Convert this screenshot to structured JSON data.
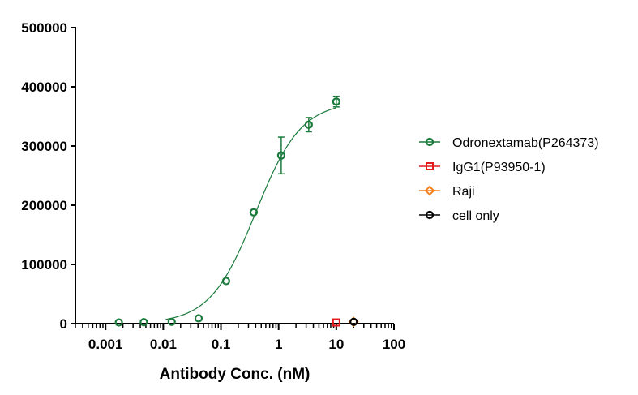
{
  "chart_data": {
    "type": "scatter",
    "title": "",
    "xlabel": "Antibody Conc. (nM)",
    "ylabel": "",
    "xscale": "log",
    "xlim": [
      0.0003,
      100
    ],
    "ylim": [
      0,
      500000
    ],
    "x_ticks": [
      0.001,
      0.01,
      0.1,
      1,
      10,
      100
    ],
    "x_tick_labels": [
      "0.001",
      "0.01",
      "0.1",
      "1",
      "10",
      "100"
    ],
    "y_ticks": [
      0,
      100000,
      200000,
      300000,
      400000,
      500000
    ],
    "y_tick_labels": [
      "0",
      "100000",
      "200000",
      "300000",
      "400000",
      "500000"
    ],
    "legend_position": "right",
    "grid": false,
    "series": [
      {
        "name": "Odronextamab(P264373)",
        "color": "#1a7a3c",
        "marker": "circle",
        "x": [
          0.0017,
          0.0046,
          0.014,
          0.041,
          0.123,
          0.37,
          1.11,
          3.33,
          10
        ],
        "y": [
          2000,
          2500,
          3000,
          9000,
          72000,
          188000,
          284000,
          336000,
          375000
        ],
        "err": [
          0,
          0,
          0,
          0,
          0,
          0,
          31000,
          12000,
          9000
        ],
        "fit": {
          "bottom": 0,
          "top": 375000,
          "ec50": 0.4,
          "hill": 1.1
        }
      },
      {
        "name": "IgG1(P93950-1)",
        "color": "#e41a1c",
        "marker": "square",
        "x": [
          10
        ],
        "y": [
          2000
        ]
      },
      {
        "name": "Raji",
        "color": "#f5821f",
        "marker": "diamond",
        "x": [
          20
        ],
        "y": [
          3000
        ]
      },
      {
        "name": "cell only",
        "color": "#000000",
        "marker": "circle",
        "x": [
          20
        ],
        "y": [
          3000
        ]
      }
    ]
  }
}
